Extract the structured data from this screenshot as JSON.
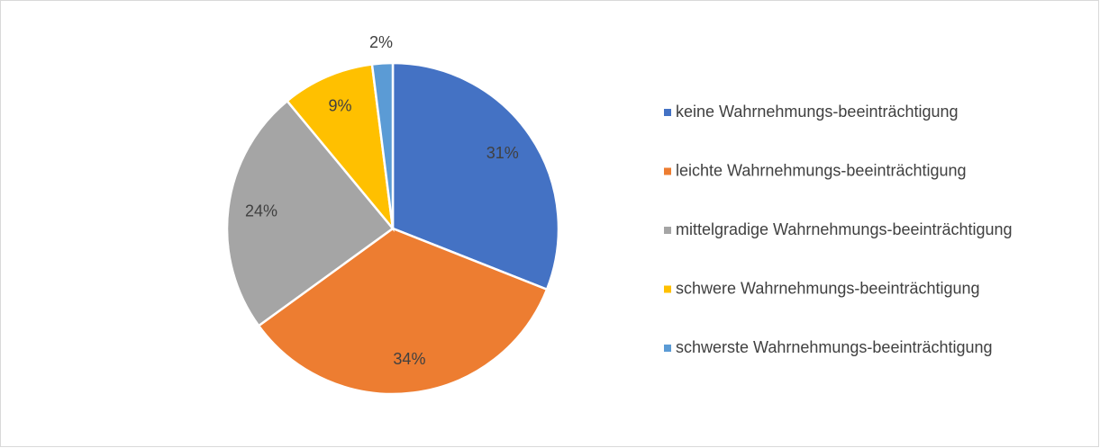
{
  "chart_data": {
    "type": "pie",
    "categories": [
      "keine Wahrnehmungs-beeinträchtigung",
      "leichte Wahrnehmungs-beeinträchtigung",
      "mittelgradige Wahrnehmungs-beeinträchtigung",
      "schwere Wahrnehmungs-beeinträchtigung",
      "schwerste Wahrnehmungs-beeinträchtigung"
    ],
    "values": [
      31,
      34,
      24,
      9,
      2
    ],
    "value_labels": [
      "31%",
      "34%",
      "24%",
      "9%",
      "2%"
    ],
    "colors": [
      "#4472c4",
      "#ed7d31",
      "#a5a5a5",
      "#ffc000",
      "#5b9bd5"
    ],
    "legend": "right"
  }
}
